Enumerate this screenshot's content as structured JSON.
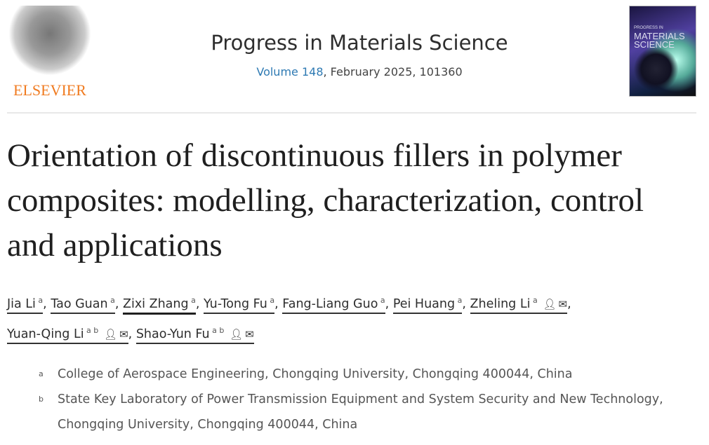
{
  "publisher": {
    "logo_text": "ELSEVIER"
  },
  "journal": {
    "title": "Progress in Materials Science",
    "volume_link": "Volume 148",
    "date_id": ", February 2025, 101360",
    "cover_text_top": "PROGRESS IN",
    "cover_text_main1": "MATERIALS",
    "cover_text_main2": "SCIENCE"
  },
  "article": {
    "title": "Orientation of discontinuous fillers in polymer composites: modelling, characterization, control and applications"
  },
  "authors": [
    {
      "name": "Jia Li",
      "aff": "a"
    },
    {
      "name": "Tao Guan",
      "aff": "a"
    },
    {
      "name": "Zixi Zhang",
      "aff": "a"
    },
    {
      "name": "Yu-Tong Fu",
      "aff": "a"
    },
    {
      "name": "Fang-Liang Guo",
      "aff": "a"
    },
    {
      "name": "Pei Huang",
      "aff": "a"
    },
    {
      "name": "Zheling Li",
      "aff": "a",
      "icons": [
        "person-icon",
        "mail-icon"
      ]
    },
    {
      "name": "Yuan-Qing Li",
      "aff": "a b",
      "icons": [
        "person-icon",
        "mail-icon"
      ]
    },
    {
      "name": "Shao-Yun Fu",
      "aff": "a b",
      "icons": [
        "person-icon",
        "mail-icon"
      ]
    }
  ],
  "affiliations": [
    {
      "label": "a",
      "text": "College of Aerospace Engineering, Chongqing University, Chongqing 400044, China"
    },
    {
      "label": "b",
      "text": "State Key Laboratory of Power Transmission Equipment and System Security and New Technology, Chongqing University, Chongqing 400044, China"
    }
  ]
}
